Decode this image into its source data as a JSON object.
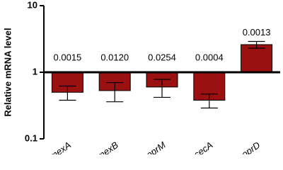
{
  "chart_data": {
    "type": "bar",
    "y_label": "Relative mRNA level",
    "categories": [
      "mexA",
      "mexB",
      "oprM",
      "secA",
      "oprD"
    ],
    "values": [
      0.5,
      0.53,
      0.6,
      0.38,
      2.6
    ],
    "errors": [
      0.12,
      0.17,
      0.18,
      0.09,
      0.3
    ],
    "annotations": [
      "0.0015",
      "0.0120",
      "0.0254",
      "0.0004",
      "0.0013"
    ],
    "color": "#9b1111",
    "log_scale": true,
    "ylim": [
      0.1,
      10
    ],
    "yticks": [
      0.1,
      1,
      10
    ],
    "grid": false
  }
}
